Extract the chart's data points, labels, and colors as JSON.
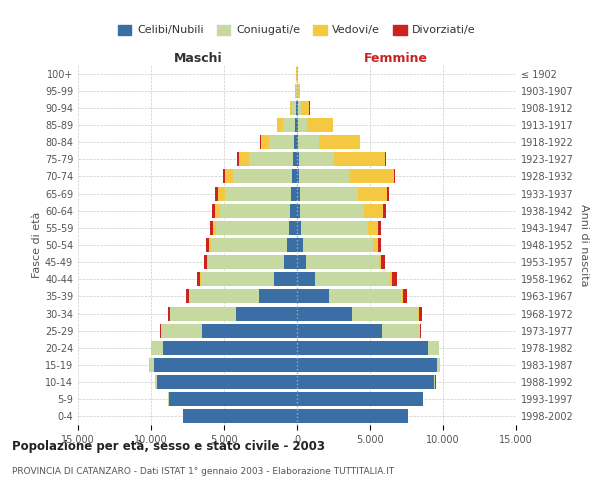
{
  "age_groups": [
    "0-4",
    "5-9",
    "10-14",
    "15-19",
    "20-24",
    "25-29",
    "30-34",
    "35-39",
    "40-44",
    "45-49",
    "50-54",
    "55-59",
    "60-64",
    "65-69",
    "70-74",
    "75-79",
    "80-84",
    "85-89",
    "90-94",
    "95-99",
    "100+"
  ],
  "birth_years": [
    "1998-2002",
    "1993-1997",
    "1988-1992",
    "1983-1987",
    "1978-1982",
    "1973-1977",
    "1968-1972",
    "1963-1967",
    "1958-1962",
    "1953-1957",
    "1948-1952",
    "1943-1947",
    "1938-1942",
    "1933-1937",
    "1928-1932",
    "1923-1927",
    "1918-1922",
    "1913-1917",
    "1908-1912",
    "1903-1907",
    "≤ 1902"
  ],
  "male_celibi": [
    7800,
    8800,
    9600,
    9800,
    9200,
    6500,
    4200,
    2600,
    1600,
    900,
    700,
    550,
    500,
    420,
    350,
    300,
    200,
    150,
    80,
    30,
    10
  ],
  "male_coniugati": [
    20,
    50,
    100,
    300,
    800,
    2800,
    4500,
    4800,
    5000,
    5200,
    5200,
    5000,
    4800,
    4500,
    4000,
    3000,
    1700,
    800,
    250,
    60,
    20
  ],
  "male_vedovi": [
    5,
    5,
    5,
    5,
    5,
    5,
    10,
    20,
    30,
    50,
    100,
    200,
    350,
    500,
    600,
    700,
    600,
    400,
    150,
    30,
    5
  ],
  "male_divorziati": [
    5,
    5,
    5,
    10,
    20,
    50,
    100,
    150,
    200,
    200,
    200,
    200,
    200,
    180,
    130,
    80,
    50,
    20,
    10,
    5,
    2
  ],
  "female_celibi": [
    7600,
    8600,
    9400,
    9600,
    9000,
    5800,
    3800,
    2200,
    1200,
    600,
    380,
    280,
    220,
    180,
    150,
    120,
    100,
    80,
    50,
    15,
    5
  ],
  "female_coniugati": [
    15,
    30,
    80,
    200,
    700,
    2600,
    4500,
    5000,
    5200,
    5000,
    4800,
    4600,
    4400,
    4000,
    3500,
    2400,
    1400,
    600,
    200,
    50,
    15
  ],
  "female_vedovi": [
    5,
    5,
    5,
    5,
    10,
    20,
    30,
    50,
    80,
    150,
    350,
    700,
    1300,
    2000,
    3000,
    3500,
    2800,
    1800,
    600,
    150,
    30
  ],
  "female_divorziati": [
    5,
    5,
    5,
    10,
    30,
    80,
    200,
    300,
    350,
    300,
    250,
    200,
    180,
    120,
    80,
    50,
    30,
    20,
    10,
    5,
    2
  ],
  "colors": {
    "celibi": "#3a6ea5",
    "coniugati": "#c5d9a0",
    "vedovi": "#f5c842",
    "divorziati": "#cc2222"
  },
  "title": "Popolazione per età, sesso e stato civile - 2003",
  "subtitle": "PROVINCIA DI CATANZARO - Dati ISTAT 1° gennaio 2003 - Elaborazione TUTTITALIA.IT",
  "xlabel_left": "Maschi",
  "xlabel_right": "Femmine",
  "ylabel_left": "Fasce di età",
  "ylabel_right": "Anni di nascita",
  "xlim": 15000,
  "legend_labels": [
    "Celibi/Nubili",
    "Coniugati/e",
    "Vedovi/e",
    "Divorziati/e"
  ],
  "bg_color": "#ffffff",
  "grid_color": "#cccccc"
}
